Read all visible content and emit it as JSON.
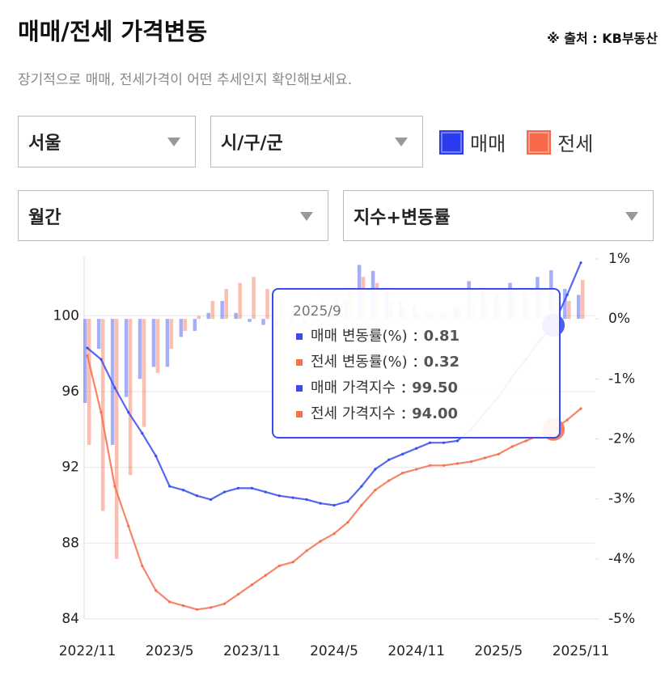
{
  "header": {
    "title": "매매/전세 가격변동",
    "source": "※ 출처 : KB부동산",
    "subtitle": "장기적으로 매매, 전세가격이 어떤 추세인지 확인해보세요."
  },
  "filters": [
    "서울",
    "시/구/군",
    "월간",
    "지수+변동률"
  ],
  "legend": [
    {
      "name": "매매",
      "color": "#2b3cf0"
    },
    {
      "name": "전세",
      "color": "#f66a4b"
    }
  ],
  "chart_data": {
    "type": "combo",
    "categories": [
      "2022/11",
      null,
      null,
      null,
      null,
      null,
      "2023/5",
      null,
      null,
      null,
      null,
      null,
      "2023/11",
      null,
      null,
      null,
      null,
      null,
      "2024/5",
      null,
      null,
      null,
      null,
      null,
      "2024/11",
      null,
      null,
      null,
      null,
      null,
      "2025/5",
      null,
      null,
      null,
      null,
      null,
      "2025/11"
    ],
    "ylim": [
      84,
      103
    ],
    "yticks": [
      84,
      88,
      92,
      96,
      100
    ],
    "y2lim": [
      -5,
      1
    ],
    "y2ticks": [
      {
        "value": -5,
        "label": "-5%"
      },
      {
        "value": -4,
        "label": "-4%"
      },
      {
        "value": -3,
        "label": "-3%"
      },
      {
        "value": -2,
        "label": "-2%"
      },
      {
        "value": -1,
        "label": "-1%"
      },
      {
        "value": 0,
        "label": "0%"
      },
      {
        "value": 1,
        "label": "1%"
      }
    ],
    "grid": true,
    "tooltip": {
      "title": "2025/9"
    },
    "series": [
      {
        "name": "매매 가격지수",
        "type": "line",
        "color": "#3a4cf0",
        "values": [
          98.3,
          97.7,
          96.2,
          94.9,
          93.8,
          92.6,
          91.0,
          90.8,
          90.5,
          90.3,
          90.7,
          90.9,
          90.9,
          90.7,
          90.5,
          90.4,
          90.3,
          90.1,
          90.0,
          90.2,
          91.0,
          91.9,
          92.4,
          92.7,
          93.0,
          93.3,
          93.3,
          93.4,
          94.0,
          94.9,
          95.7,
          96.8,
          97.7,
          98.7,
          99.5,
          101.1,
          102.8
        ],
        "value_labels": [
          null,
          null,
          null,
          null,
          null,
          null,
          null,
          null,
          null,
          null,
          null,
          null,
          null,
          null,
          null,
          null,
          null,
          null,
          null,
          null,
          null,
          null,
          null,
          null,
          null,
          null,
          null,
          null,
          null,
          null,
          null,
          null,
          null,
          null,
          "99.50",
          null,
          null
        ]
      },
      {
        "name": "전세 가격지수",
        "type": "line",
        "color": "#f4704f",
        "values": [
          97.9,
          94.9,
          91.0,
          88.9,
          86.8,
          85.5,
          84.9,
          84.7,
          84.5,
          84.6,
          84.8,
          85.3,
          85.8,
          86.3,
          86.8,
          87.0,
          87.6,
          88.1,
          88.5,
          89.1,
          90.0,
          90.8,
          91.3,
          91.7,
          91.9,
          92.1,
          92.1,
          92.2,
          92.3,
          92.5,
          92.7,
          93.1,
          93.4,
          93.7,
          94.0,
          94.5,
          95.1
        ],
        "value_labels": [
          null,
          null,
          null,
          null,
          null,
          null,
          null,
          null,
          null,
          null,
          null,
          null,
          null,
          null,
          null,
          null,
          null,
          null,
          null,
          null,
          null,
          null,
          null,
          null,
          null,
          null,
          null,
          null,
          null,
          null,
          null,
          null,
          null,
          null,
          "94.00",
          null,
          null
        ]
      },
      {
        "name": "매매 변동률(%)",
        "type": "bar",
        "axis": "y2",
        "color": "#3a4cf0",
        "values": [
          -1.4,
          -0.5,
          -2.1,
          -1.3,
          -1.0,
          -0.8,
          -0.8,
          -0.3,
          -0.2,
          0.1,
          0.3,
          0.1,
          -0.05,
          -0.1,
          -0.15,
          -0.1,
          -0.1,
          -0.05,
          0.1,
          0.3,
          0.9,
          0.8,
          0.5,
          0.3,
          0.2,
          0.1,
          0.1,
          0.2,
          0.63,
          0.5,
          0.4,
          0.6,
          0.5,
          0.7,
          0.81,
          0.5,
          0.4
        ]
      },
      {
        "name": "전세 변동률(%)",
        "type": "bar",
        "axis": "y2",
        "color": "#f4704f",
        "values": [
          -2.1,
          -3.2,
          -4.0,
          -2.6,
          -1.8,
          -0.9,
          -0.5,
          -0.2,
          0.05,
          0.3,
          0.5,
          0.6,
          0.7,
          0.5,
          0.3,
          0.2,
          0.3,
          0.4,
          0.4,
          0.5,
          0.7,
          0.6,
          0.3,
          0.2,
          0.1,
          0.1,
          0.1,
          0.2,
          0.3,
          0.3,
          0.3,
          0.4,
          0.4,
          0.5,
          0.32,
          0.3,
          0.65
        ]
      }
    ]
  }
}
